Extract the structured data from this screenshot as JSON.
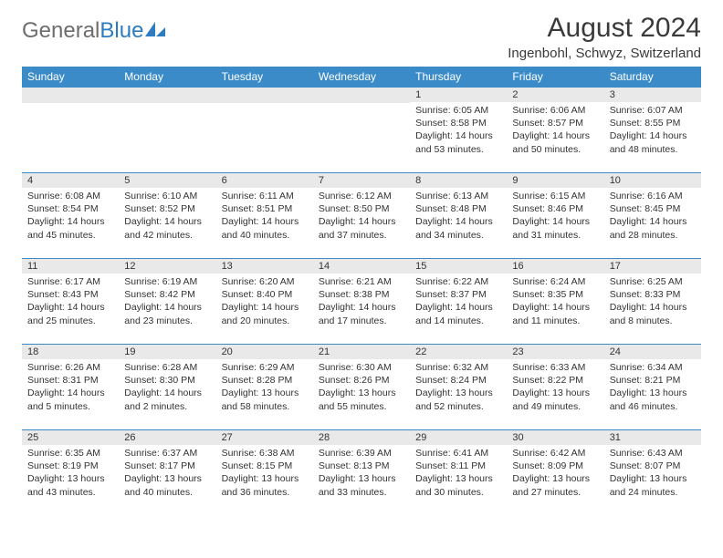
{
  "brand": {
    "part1": "General",
    "part2": "Blue"
  },
  "title": "August 2024",
  "location": "Ingenbohl, Schwyz, Switzerland",
  "colors": {
    "header_bg": "#3b8bc8",
    "header_text": "#ffffff",
    "daynum_bg": "#e9e9e9",
    "cell_border": "#3b8bc8",
    "body_text": "#333333",
    "brand_gray": "#6d6d6d",
    "brand_blue": "#2d7cc0"
  },
  "weekdays": [
    "Sunday",
    "Monday",
    "Tuesday",
    "Wednesday",
    "Thursday",
    "Friday",
    "Saturday"
  ],
  "weeks": [
    [
      null,
      null,
      null,
      null,
      {
        "d": "1",
        "sr": "6:05 AM",
        "ss": "8:58 PM",
        "dl": "14 hours and 53 minutes."
      },
      {
        "d": "2",
        "sr": "6:06 AM",
        "ss": "8:57 PM",
        "dl": "14 hours and 50 minutes."
      },
      {
        "d": "3",
        "sr": "6:07 AM",
        "ss": "8:55 PM",
        "dl": "14 hours and 48 minutes."
      }
    ],
    [
      {
        "d": "4",
        "sr": "6:08 AM",
        "ss": "8:54 PM",
        "dl": "14 hours and 45 minutes."
      },
      {
        "d": "5",
        "sr": "6:10 AM",
        "ss": "8:52 PM",
        "dl": "14 hours and 42 minutes."
      },
      {
        "d": "6",
        "sr": "6:11 AM",
        "ss": "8:51 PM",
        "dl": "14 hours and 40 minutes."
      },
      {
        "d": "7",
        "sr": "6:12 AM",
        "ss": "8:50 PM",
        "dl": "14 hours and 37 minutes."
      },
      {
        "d": "8",
        "sr": "6:13 AM",
        "ss": "8:48 PM",
        "dl": "14 hours and 34 minutes."
      },
      {
        "d": "9",
        "sr": "6:15 AM",
        "ss": "8:46 PM",
        "dl": "14 hours and 31 minutes."
      },
      {
        "d": "10",
        "sr": "6:16 AM",
        "ss": "8:45 PM",
        "dl": "14 hours and 28 minutes."
      }
    ],
    [
      {
        "d": "11",
        "sr": "6:17 AM",
        "ss": "8:43 PM",
        "dl": "14 hours and 25 minutes."
      },
      {
        "d": "12",
        "sr": "6:19 AM",
        "ss": "8:42 PM",
        "dl": "14 hours and 23 minutes."
      },
      {
        "d": "13",
        "sr": "6:20 AM",
        "ss": "8:40 PM",
        "dl": "14 hours and 20 minutes."
      },
      {
        "d": "14",
        "sr": "6:21 AM",
        "ss": "8:38 PM",
        "dl": "14 hours and 17 minutes."
      },
      {
        "d": "15",
        "sr": "6:22 AM",
        "ss": "8:37 PM",
        "dl": "14 hours and 14 minutes."
      },
      {
        "d": "16",
        "sr": "6:24 AM",
        "ss": "8:35 PM",
        "dl": "14 hours and 11 minutes."
      },
      {
        "d": "17",
        "sr": "6:25 AM",
        "ss": "8:33 PM",
        "dl": "14 hours and 8 minutes."
      }
    ],
    [
      {
        "d": "18",
        "sr": "6:26 AM",
        "ss": "8:31 PM",
        "dl": "14 hours and 5 minutes."
      },
      {
        "d": "19",
        "sr": "6:28 AM",
        "ss": "8:30 PM",
        "dl": "14 hours and 2 minutes."
      },
      {
        "d": "20",
        "sr": "6:29 AM",
        "ss": "8:28 PM",
        "dl": "13 hours and 58 minutes."
      },
      {
        "d": "21",
        "sr": "6:30 AM",
        "ss": "8:26 PM",
        "dl": "13 hours and 55 minutes."
      },
      {
        "d": "22",
        "sr": "6:32 AM",
        "ss": "8:24 PM",
        "dl": "13 hours and 52 minutes."
      },
      {
        "d": "23",
        "sr": "6:33 AM",
        "ss": "8:22 PM",
        "dl": "13 hours and 49 minutes."
      },
      {
        "d": "24",
        "sr": "6:34 AM",
        "ss": "8:21 PM",
        "dl": "13 hours and 46 minutes."
      }
    ],
    [
      {
        "d": "25",
        "sr": "6:35 AM",
        "ss": "8:19 PM",
        "dl": "13 hours and 43 minutes."
      },
      {
        "d": "26",
        "sr": "6:37 AM",
        "ss": "8:17 PM",
        "dl": "13 hours and 40 minutes."
      },
      {
        "d": "27",
        "sr": "6:38 AM",
        "ss": "8:15 PM",
        "dl": "13 hours and 36 minutes."
      },
      {
        "d": "28",
        "sr": "6:39 AM",
        "ss": "8:13 PM",
        "dl": "13 hours and 33 minutes."
      },
      {
        "d": "29",
        "sr": "6:41 AM",
        "ss": "8:11 PM",
        "dl": "13 hours and 30 minutes."
      },
      {
        "d": "30",
        "sr": "6:42 AM",
        "ss": "8:09 PM",
        "dl": "13 hours and 27 minutes."
      },
      {
        "d": "31",
        "sr": "6:43 AM",
        "ss": "8:07 PM",
        "dl": "13 hours and 24 minutes."
      }
    ]
  ],
  "labels": {
    "sunrise": "Sunrise:",
    "sunset": "Sunset:",
    "daylight": "Daylight:"
  }
}
